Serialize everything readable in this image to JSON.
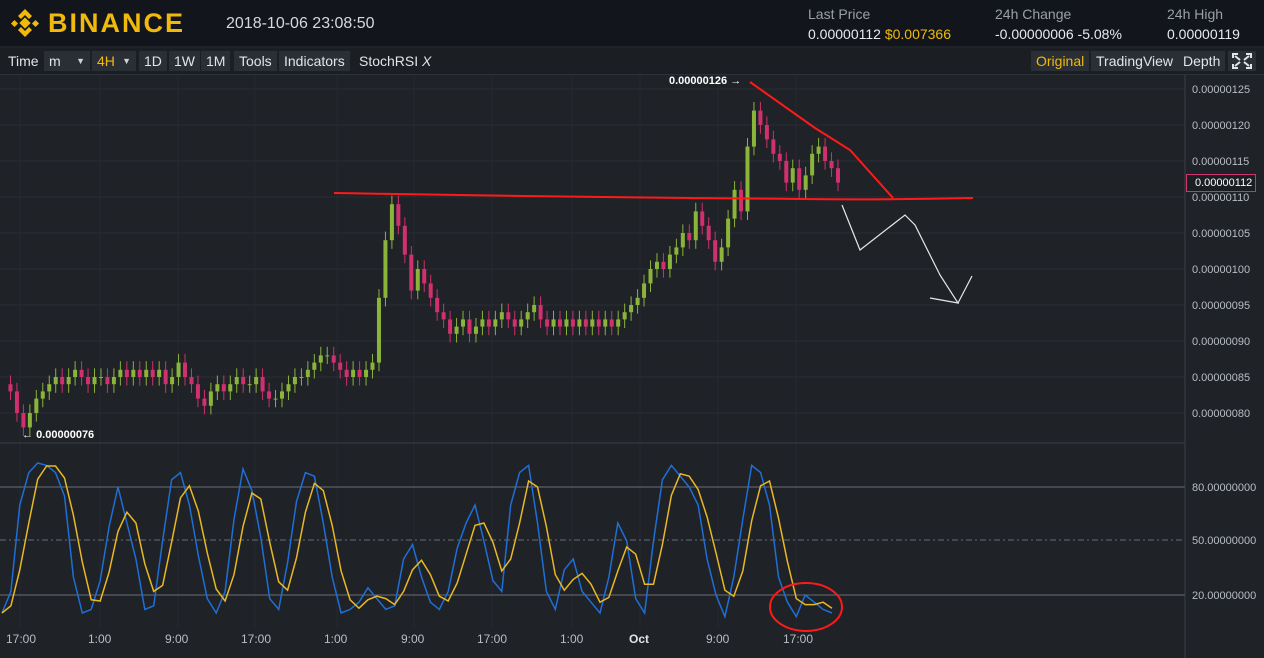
{
  "header": {
    "brand": "BINANCE",
    "datetime": "2018-10-06 23:08:50",
    "last_price": {
      "label": "Last Price",
      "value": "0.00000112",
      "usd": "$0.007366"
    },
    "change_24h": {
      "label": "24h Change",
      "value": "-0.00000006",
      "percent": "-5.08%"
    },
    "high_24h": {
      "label": "24h High",
      "value": "0.00000119"
    }
  },
  "toolbar": {
    "time": "Time",
    "interval_unit": "m",
    "interval_selected": "4H",
    "periods": [
      "1D",
      "1W",
      "1M"
    ],
    "tools": "Tools",
    "indicators": "Indicators",
    "study": "StochRSI",
    "study_close": "X",
    "views": [
      "Original",
      "TradingView",
      "Depth"
    ],
    "active_view": "Original"
  },
  "chart": {
    "price_axis": [
      "0.00000125",
      "0.00000120",
      "0.00000115",
      "0.00000110",
      "0.00000105",
      "0.00000100",
      "0.00000095",
      "0.00000090",
      "0.00000085",
      "0.00000080"
    ],
    "current_price": "0.00000112",
    "high_marker": "0.00000126",
    "low_marker": "0.00000076",
    "stoch_axis": [
      "80.00000000",
      "50.00000000",
      "20.00000000"
    ],
    "time_axis": [
      "17:00",
      "1:00",
      "9:00",
      "17:00",
      "1:00",
      "9:00",
      "17:00",
      "1:00",
      "Oct",
      "9:00",
      "17:00"
    ],
    "colors": {
      "up": "#8bb43a",
      "down": "#d0306e",
      "k_line": "#1f6fd6",
      "d_line": "#e8b825",
      "annotation": "#ff1a1a",
      "sketch": "#e8e8e8"
    }
  }
}
